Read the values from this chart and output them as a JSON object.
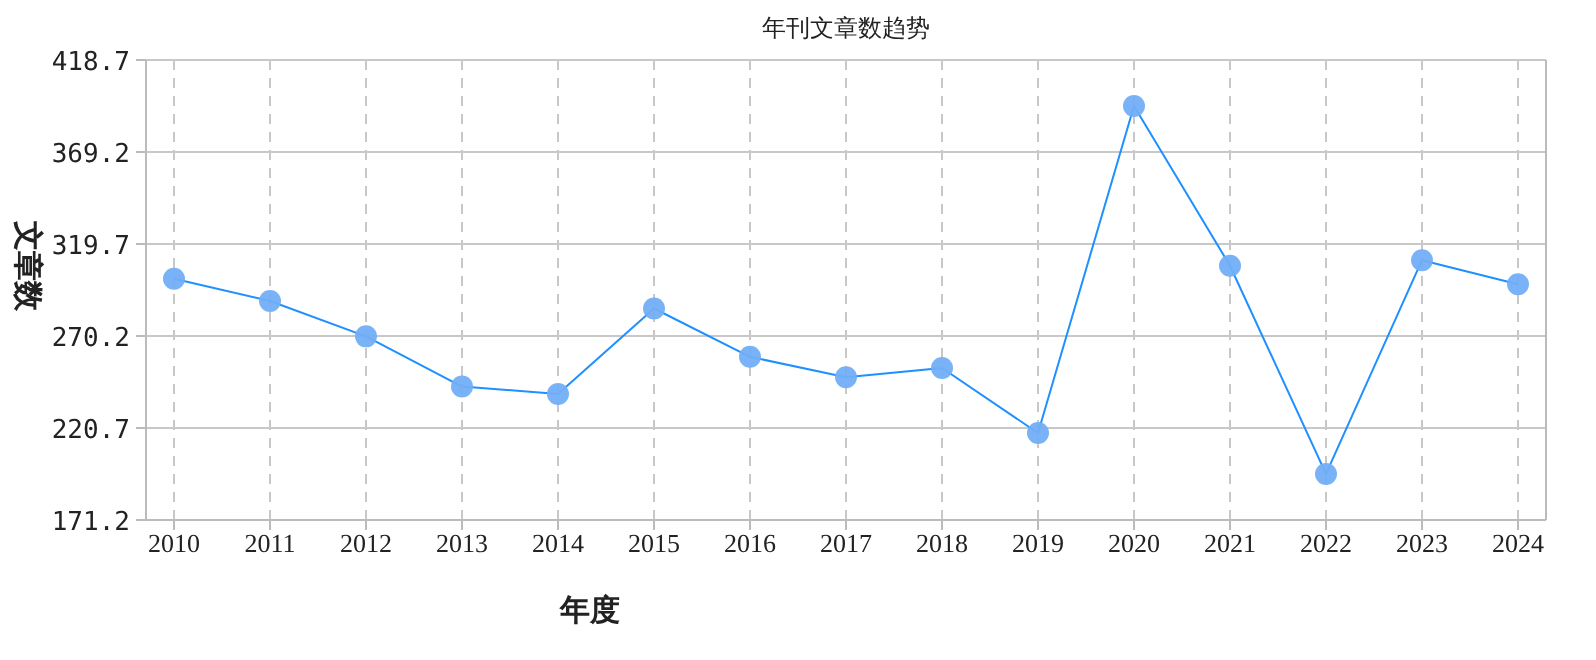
{
  "chart_data": {
    "type": "line",
    "title": "年刊文章数趋势",
    "xlabel": "年度",
    "ylabel": "文章数",
    "categories": [
      "2010",
      "2011",
      "2012",
      "2013",
      "2014",
      "2015",
      "2016",
      "2017",
      "2018",
      "2019",
      "2020",
      "2021",
      "2022",
      "2023",
      "2024"
    ],
    "series": [
      {
        "color": "#1e90ff",
        "values": [
          301,
          289,
          270,
          243,
          239,
          285,
          259,
          248,
          253,
          218,
          394,
          308,
          196,
          311,
          298
        ]
      }
    ],
    "ylim": [
      171.2,
      418.7
    ],
    "yticks": [
      171.2,
      220.7,
      270.2,
      319.7,
      369.2,
      418.7
    ],
    "grid": true,
    "marker": "circle"
  }
}
